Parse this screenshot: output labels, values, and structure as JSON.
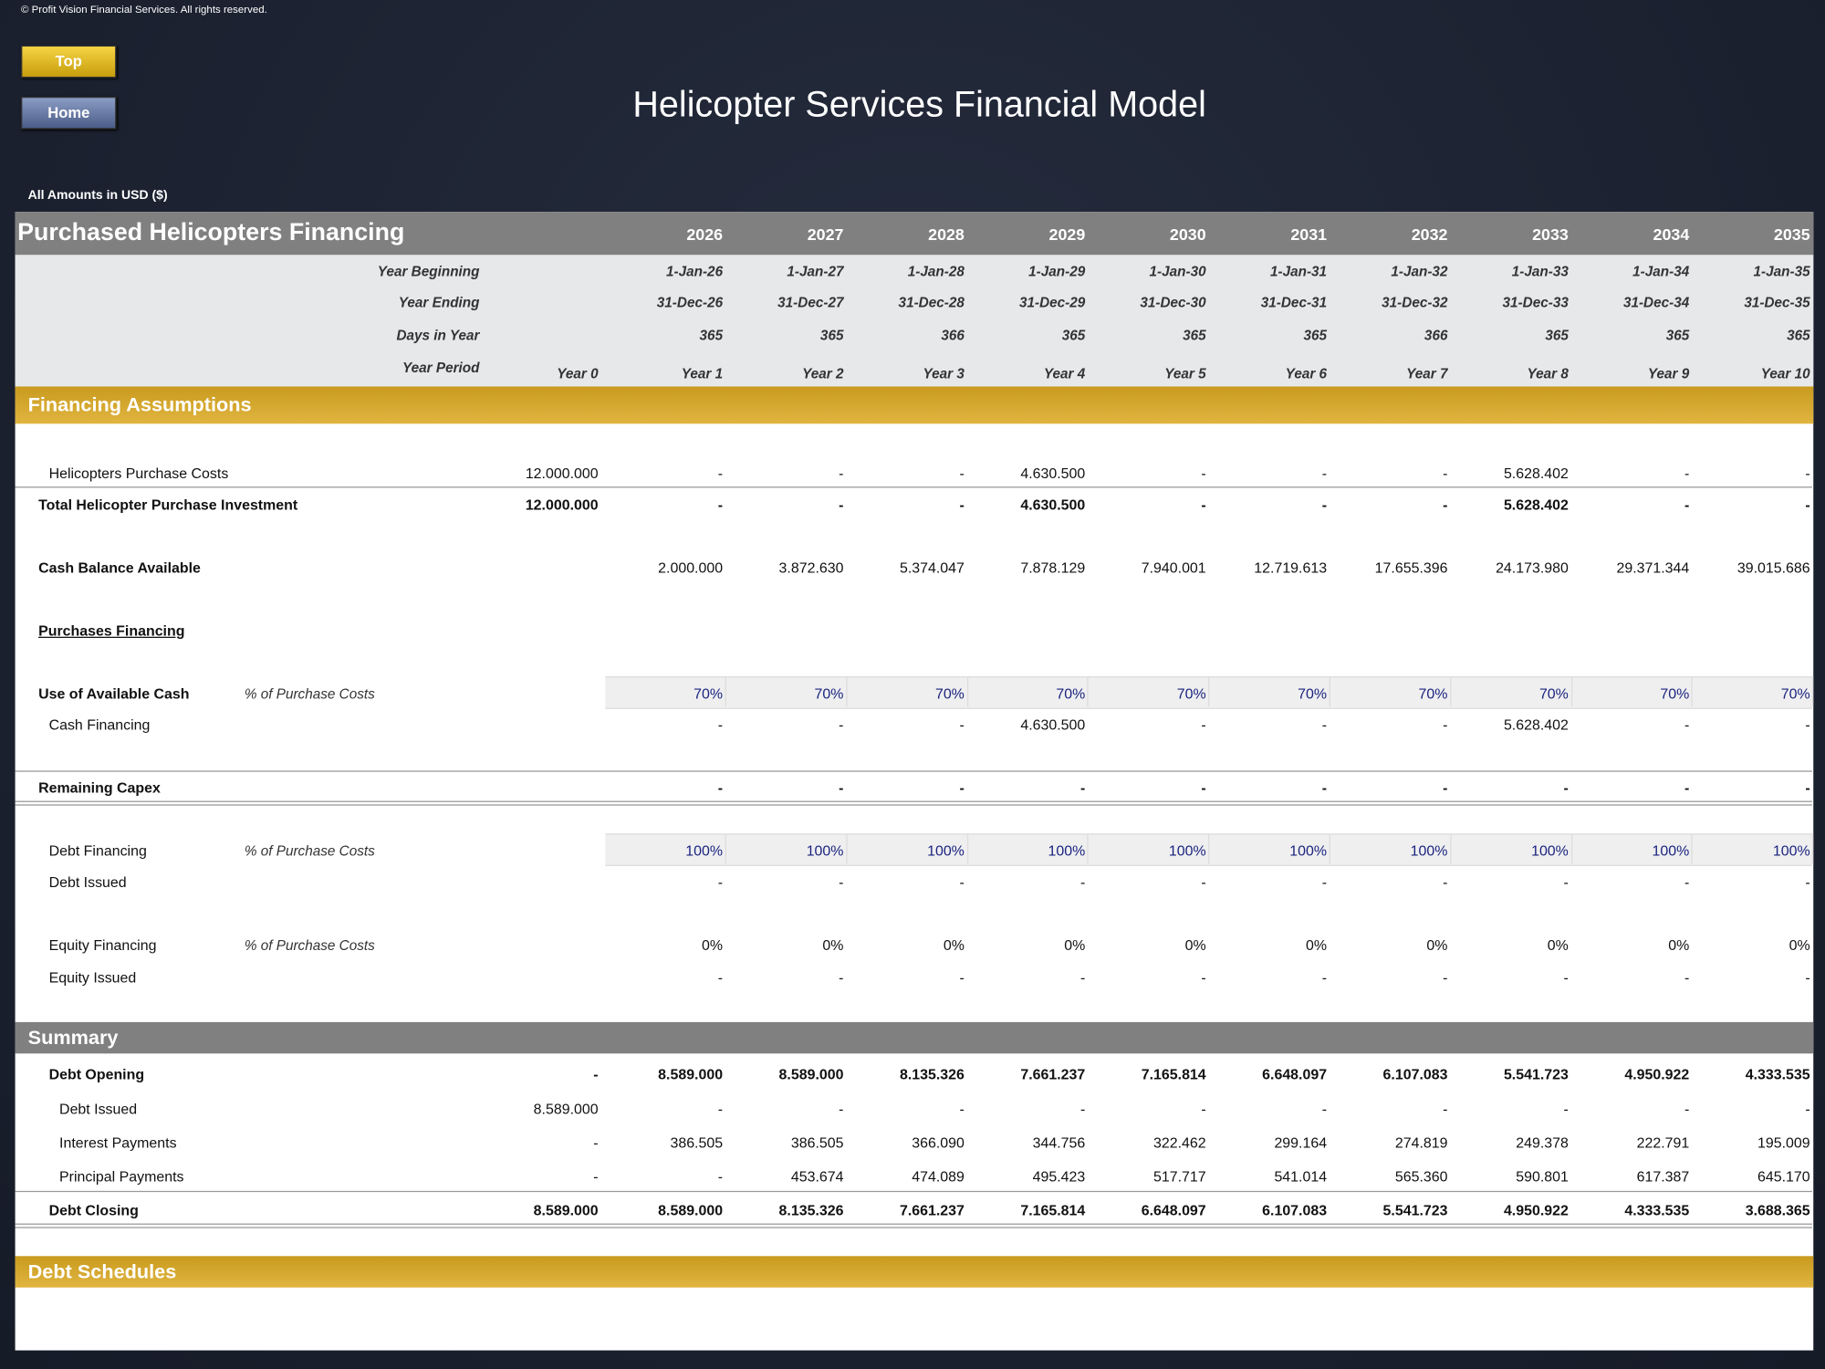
{
  "copyright": "© Profit Vision Financial Services. All rights reserved.",
  "buttons": {
    "top": "Top",
    "home": "Home"
  },
  "title": "Helicopter Services  Financial Model",
  "currency_note": "All Amounts in  USD ($)",
  "table": {
    "title": "Purchased Helicopters Financing",
    "years": [
      "2026",
      "2027",
      "2028",
      "2029",
      "2030",
      "2031",
      "2032",
      "2033",
      "2034",
      "2035"
    ],
    "timeline": [
      {
        "label": "Year Beginning",
        "values": [
          "1-Jan-26",
          "1-Jan-27",
          "1-Jan-28",
          "1-Jan-29",
          "1-Jan-30",
          "1-Jan-31",
          "1-Jan-32",
          "1-Jan-33",
          "1-Jan-34",
          "1-Jan-35"
        ]
      },
      {
        "label": "Year Ending",
        "values": [
          "31-Dec-26",
          "31-Dec-27",
          "31-Dec-28",
          "31-Dec-29",
          "31-Dec-30",
          "31-Dec-31",
          "31-Dec-32",
          "31-Dec-33",
          "31-Dec-34",
          "31-Dec-35"
        ]
      },
      {
        "label": "Days in Year",
        "values": [
          "365",
          "365",
          "366",
          "365",
          "365",
          "365",
          "366",
          "365",
          "365",
          "365"
        ]
      },
      {
        "label": "Year Period",
        "year0": "Year 0",
        "values": [
          "Year 1",
          "Year 2",
          "Year 3",
          "Year 4",
          "Year 5",
          "Year 6",
          "Year 7",
          "Year 8",
          "Year 9",
          "Year 10"
        ]
      }
    ],
    "sections": [
      {
        "title": "Financing Assumptions",
        "rows": [
          {
            "label": "Helicopters Purchase Costs",
            "year0": "12.000.000",
            "values": [
              "-",
              "-",
              "-",
              "4.630.500",
              "-",
              "-",
              "-",
              "5.628.402",
              "-",
              "-"
            ]
          },
          {
            "label": "Total Helicopter Purchase Investment",
            "year0": "12.000.000",
            "values": [
              "-",
              "-",
              "-",
              "4.630.500",
              "-",
              "-",
              "-",
              "5.628.402",
              "-",
              "-"
            ]
          },
          {
            "label": "Cash Balance Available",
            "values": [
              "2.000.000",
              "3.872.630",
              "5.374.047",
              "7.878.129",
              "7.940.001",
              "12.719.613",
              "17.655.396",
              "24.173.980",
              "29.371.344",
              "39.015.686"
            ]
          },
          {
            "label": "Purchases Financing"
          },
          {
            "label": "Use of Available Cash",
            "note": "% of Purchase Costs",
            "values": [
              "70%",
              "70%",
              "70%",
              "70%",
              "70%",
              "70%",
              "70%",
              "70%",
              "70%",
              "70%"
            ]
          },
          {
            "label": "Cash Financing",
            "values": [
              "-",
              "-",
              "-",
              "4.630.500",
              "-",
              "-",
              "-",
              "5.628.402",
              "-",
              "-"
            ]
          },
          {
            "label": "Remaining Capex",
            "values": [
              "-",
              "-",
              "-",
              "-",
              "-",
              "-",
              "-",
              "-",
              "-",
              "-"
            ]
          },
          {
            "label": "Debt Financing",
            "note": "% of Purchase Costs",
            "values": [
              "100%",
              "100%",
              "100%",
              "100%",
              "100%",
              "100%",
              "100%",
              "100%",
              "100%",
              "100%"
            ]
          },
          {
            "label": "Debt Issued",
            "values": [
              "-",
              "-",
              "-",
              "-",
              "-",
              "-",
              "-",
              "-",
              "-",
              "-"
            ]
          },
          {
            "label": "Equity Financing",
            "note": "% of Purchase Costs",
            "values": [
              "0%",
              "0%",
              "0%",
              "0%",
              "0%",
              "0%",
              "0%",
              "0%",
              "0%",
              "0%"
            ]
          },
          {
            "label": "Equity Issued",
            "values": [
              "-",
              "-",
              "-",
              "-",
              "-",
              "-",
              "-",
              "-",
              "-",
              "-"
            ]
          }
        ]
      },
      {
        "title": "Summary",
        "rows": [
          {
            "label": "Debt Opening",
            "year0": "-",
            "values": [
              "8.589.000",
              "8.589.000",
              "8.135.326",
              "7.661.237",
              "7.165.814",
              "6.648.097",
              "6.107.083",
              "5.541.723",
              "4.950.922",
              "4.333.535"
            ]
          },
          {
            "label": "Debt Issued",
            "year0": "8.589.000",
            "values": [
              "-",
              "-",
              "-",
              "-",
              "-",
              "-",
              "-",
              "-",
              "-",
              "-"
            ]
          },
          {
            "label": "Interest Payments",
            "year0": "-",
            "values": [
              "386.505",
              "386.505",
              "366.090",
              "344.756",
              "322.462",
              "299.164",
              "274.819",
              "249.378",
              "222.791",
              "195.009"
            ]
          },
          {
            "label": "Principal Payments",
            "year0": "-",
            "values": [
              "-",
              "453.674",
              "474.089",
              "495.423",
              "517.717",
              "541.014",
              "565.360",
              "590.801",
              "617.387",
              "645.170"
            ]
          },
          {
            "label": "Debt Closing",
            "year0": "8.589.000",
            "values": [
              "8.589.000",
              "8.135.326",
              "7.661.237",
              "7.165.814",
              "6.648.097",
              "6.107.083",
              "5.541.723",
              "4.950.922",
              "4.333.535",
              "3.688.365"
            ]
          }
        ]
      },
      {
        "title": "Debt Schedules"
      }
    ]
  }
}
